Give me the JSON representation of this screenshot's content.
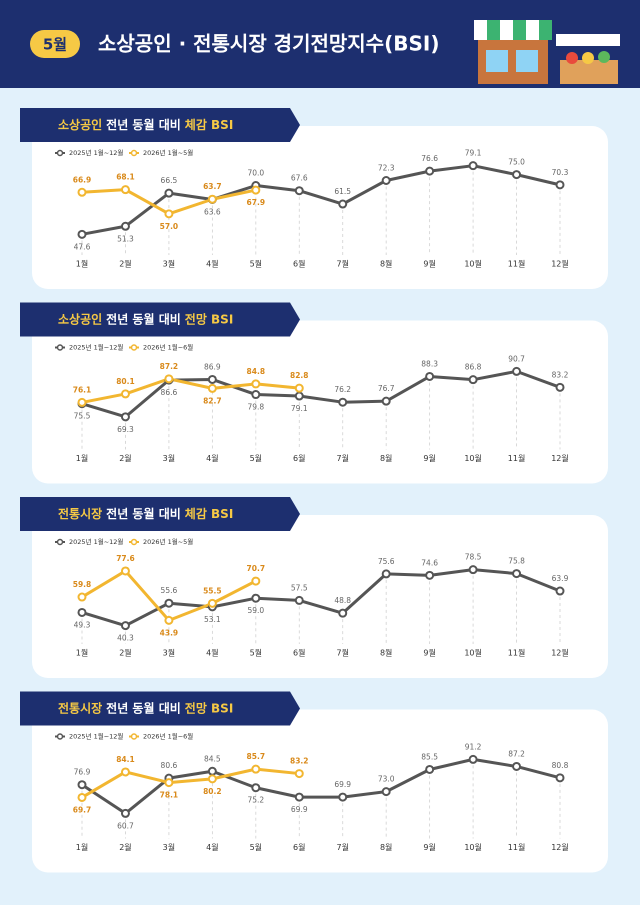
{
  "header": {
    "badge": "5월",
    "title": "소상공인 · 전통시장 경기전망지수(BSI)"
  },
  "chart_data": [
    {
      "type": "line",
      "title": [
        "소상공인",
        "전년 동월 대비",
        "체감 BSI"
      ],
      "categories": [
        "1월",
        "2월",
        "3월",
        "4월",
        "5월",
        "6월",
        "7월",
        "8월",
        "9월",
        "10월",
        "11월",
        "12월"
      ],
      "ylim": [
        45,
        84
      ],
      "series": [
        {
          "name": "2025년 1월~12월",
          "color": "#555555",
          "values": [
            47.6,
            51.3,
            66.5,
            63.6,
            70.0,
            67.6,
            61.5,
            72.3,
            76.6,
            79.1,
            75.0,
            70.3
          ],
          "value_labels": [
            "47.6",
            "51.3",
            "66.5",
            "63.6",
            "70.0",
            "67.6",
            "61.5",
            "72.3",
            "76.6",
            "79.1",
            "75.0",
            "70.3"
          ]
        },
        {
          "name": "2026년 1월~5월",
          "color": "#f2b630",
          "values": [
            66.9,
            68.1,
            57.0,
            63.7,
            67.9,
            null,
            null,
            null,
            null,
            null,
            null,
            null
          ],
          "value_labels": [
            "66.9",
            "68.1",
            "57.0",
            "63.7",
            "67.9",
            null,
            null,
            null,
            null,
            null,
            null,
            null
          ]
        }
      ]
    },
    {
      "type": "line",
      "title": [
        "소상공인",
        "전년 동월 대비",
        "전망 BSI"
      ],
      "categories": [
        "1월",
        "2월",
        "3월",
        "4월",
        "5월",
        "6월",
        "7월",
        "8월",
        "9월",
        "10월",
        "11월",
        "12월"
      ],
      "ylim": [
        61,
        101
      ],
      "series": [
        {
          "name": "2025년 1월~12월",
          "color": "#555555",
          "values": [
            75.5,
            69.3,
            86.6,
            86.9,
            79.8,
            79.1,
            76.2,
            76.7,
            88.3,
            86.8,
            90.7,
            83.2
          ]
        },
        {
          "name": "2026년 1월~6월",
          "color": "#f2b630",
          "values": [
            76.1,
            80.1,
            87.2,
            82.7,
            84.8,
            82.8,
            null,
            null,
            null,
            null,
            null,
            null
          ]
        }
      ]
    },
    {
      "type": "line",
      "title": [
        "전통시장",
        "전년 동월 대비",
        "체감 BSI"
      ],
      "categories": [
        "1월",
        "2월",
        "3월",
        "4월",
        "5월",
        "6월",
        "7월",
        "8월",
        "9월",
        "10월",
        "11월",
        "12월"
      ],
      "ylim": [
        38,
        96
      ],
      "series": [
        {
          "name": "2025년 1월~12월",
          "color": "#555555",
          "values": [
            49.3,
            40.3,
            55.6,
            53.1,
            59.0,
            57.5,
            48.8,
            75.6,
            74.6,
            78.5,
            75.8,
            63.9
          ],
          "value_labels": [
            "49.3",
            "40.3",
            "55.6",
            "53.1",
            "59.0",
            "57.5",
            "48.8",
            "75.6",
            "74.6",
            "78.5",
            "75.8",
            "63.9"
          ]
        },
        {
          "name": "2026년 1월~5월",
          "color": "#f2b630",
          "values": [
            59.8,
            77.6,
            43.9,
            55.5,
            70.7,
            null,
            null,
            null,
            null,
            null,
            null,
            null
          ]
        }
      ]
    },
    {
      "type": "line",
      "title": [
        "전통시장",
        "전년 동월 대비",
        "전망 BSI"
      ],
      "categories": [
        "1월",
        "2월",
        "3월",
        "4월",
        "5월",
        "6월",
        "7월",
        "8월",
        "9월",
        "10월",
        "11월",
        "12월"
      ],
      "ylim": [
        55,
        103
      ],
      "series": [
        {
          "name": "2025년 1월~12월",
          "color": "#555555",
          "values": [
            76.9,
            60.7,
            80.6,
            84.5,
            75.2,
            69.9,
            69.9,
            73.0,
            85.5,
            91.2,
            87.2,
            80.8
          ],
          "value_labels": [
            "76.9",
            "60.7",
            "80.6",
            "84.5",
            "75.2",
            "69.9",
            "69.9",
            "73.0",
            "85.5",
            "91.2",
            "87.2",
            "80.8"
          ]
        },
        {
          "name": "2026년 1월~6월",
          "color": "#f2b630",
          "values": [
            69.7,
            84.1,
            78.1,
            80.2,
            85.7,
            83.2,
            null,
            null,
            null,
            null,
            null,
            null
          ]
        }
      ]
    }
  ]
}
